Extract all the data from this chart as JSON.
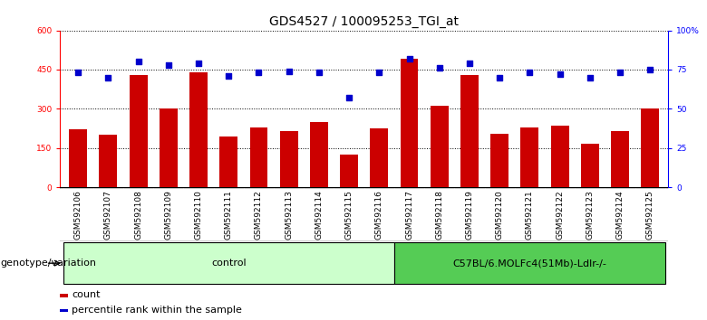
{
  "title": "GDS4527 / 100095253_TGI_at",
  "samples": [
    "GSM592106",
    "GSM592107",
    "GSM592108",
    "GSM592109",
    "GSM592110",
    "GSM592111",
    "GSM592112",
    "GSM592113",
    "GSM592114",
    "GSM592115",
    "GSM592116",
    "GSM592117",
    "GSM592118",
    "GSM592119",
    "GSM592120",
    "GSM592121",
    "GSM592122",
    "GSM592123",
    "GSM592124",
    "GSM592125"
  ],
  "counts": [
    220,
    200,
    430,
    300,
    440,
    195,
    230,
    215,
    250,
    125,
    225,
    490,
    310,
    430,
    205,
    230,
    235,
    165,
    215,
    300
  ],
  "percentiles": [
    73,
    70,
    80,
    78,
    79,
    71,
    73,
    74,
    73,
    57,
    73,
    82,
    76,
    79,
    70,
    73,
    72,
    70,
    73,
    75
  ],
  "n_control": 11,
  "n_treatment": 9,
  "control_label": "control",
  "treatment_label": "C57BL/6.MOLFc4(51Mb)-Ldlr-/-",
  "genotype_label": "genotype/variation",
  "ylim_left": [
    0,
    600
  ],
  "ylim_right": [
    0,
    100
  ],
  "yticks_left": [
    0,
    150,
    300,
    450,
    600
  ],
  "yticks_right": [
    0,
    25,
    50,
    75,
    100
  ],
  "ytick_labels_left": [
    "0",
    "150",
    "300",
    "450",
    "600"
  ],
  "ytick_labels_right": [
    "0",
    "25",
    "50",
    "75",
    "100%"
  ],
  "bar_color": "#cc0000",
  "dot_color": "#0000cc",
  "bg_color": "#ffffff",
  "tick_area_color": "#c8c8c8",
  "tick_area_border": "#888888",
  "control_bg": "#ccffcc",
  "treatment_bg": "#55cc55",
  "legend_count_label": "count",
  "legend_pct_label": "percentile rank within the sample",
  "title_fontsize": 10,
  "tick_fontsize": 6.5,
  "label_fontsize": 8,
  "legend_fontsize": 8
}
